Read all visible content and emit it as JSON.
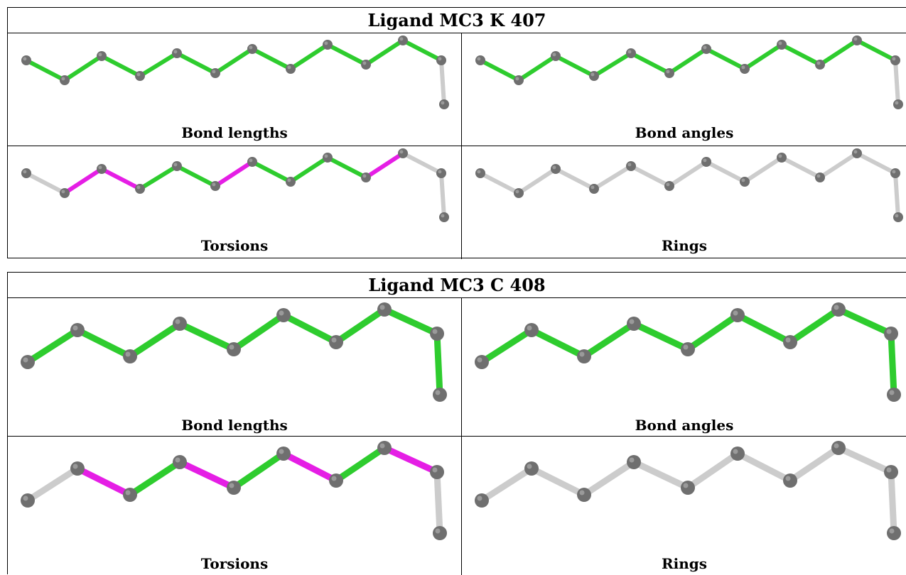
{
  "colors": {
    "pass": "#2ecc2e",
    "outlier": "#e51ee5",
    "none": "#cccccc",
    "atom": "#6f6f6f"
  },
  "ligands": [
    {
      "title": "Ligand MC3 K 407",
      "panels": [
        {
          "label": "Bond lengths",
          "bond_colors": [
            "pass",
            "pass",
            "pass",
            "pass",
            "pass",
            "pass",
            "pass",
            "pass",
            "pass",
            "pass",
            "pass"
          ]
        },
        {
          "label": "Bond angles",
          "bond_colors": [
            "pass",
            "pass",
            "pass",
            "pass",
            "pass",
            "pass",
            "pass",
            "pass",
            "pass",
            "pass",
            "pass"
          ]
        },
        {
          "label": "Torsions",
          "bond_colors": [
            "none",
            "outlier",
            "outlier",
            "pass",
            "pass",
            "outlier",
            "pass",
            "pass",
            "pass",
            "outlier",
            "none"
          ]
        },
        {
          "label": "Rings",
          "bond_colors": [
            "none",
            "none",
            "none",
            "none",
            "none",
            "none",
            "none",
            "none",
            "none",
            "none",
            "none"
          ]
        }
      ]
    },
    {
      "title": "Ligand MC3 C 408",
      "panels": [
        {
          "label": "Bond lengths",
          "bond_colors": [
            "pass",
            "pass",
            "pass",
            "pass",
            "pass",
            "pass",
            "pass",
            "pass",
            "pass"
          ]
        },
        {
          "label": "Bond angles",
          "bond_colors": [
            "pass",
            "pass",
            "pass",
            "pass",
            "pass",
            "pass",
            "pass",
            "pass",
            "pass"
          ]
        },
        {
          "label": "Torsions",
          "bond_colors": [
            "none",
            "outlier",
            "pass",
            "outlier",
            "pass",
            "outlier",
            "pass",
            "outlier",
            "none"
          ]
        },
        {
          "label": "Rings",
          "bond_colors": [
            "none",
            "none",
            "none",
            "none",
            "none",
            "none",
            "none",
            "none",
            "none"
          ]
        }
      ]
    }
  ]
}
